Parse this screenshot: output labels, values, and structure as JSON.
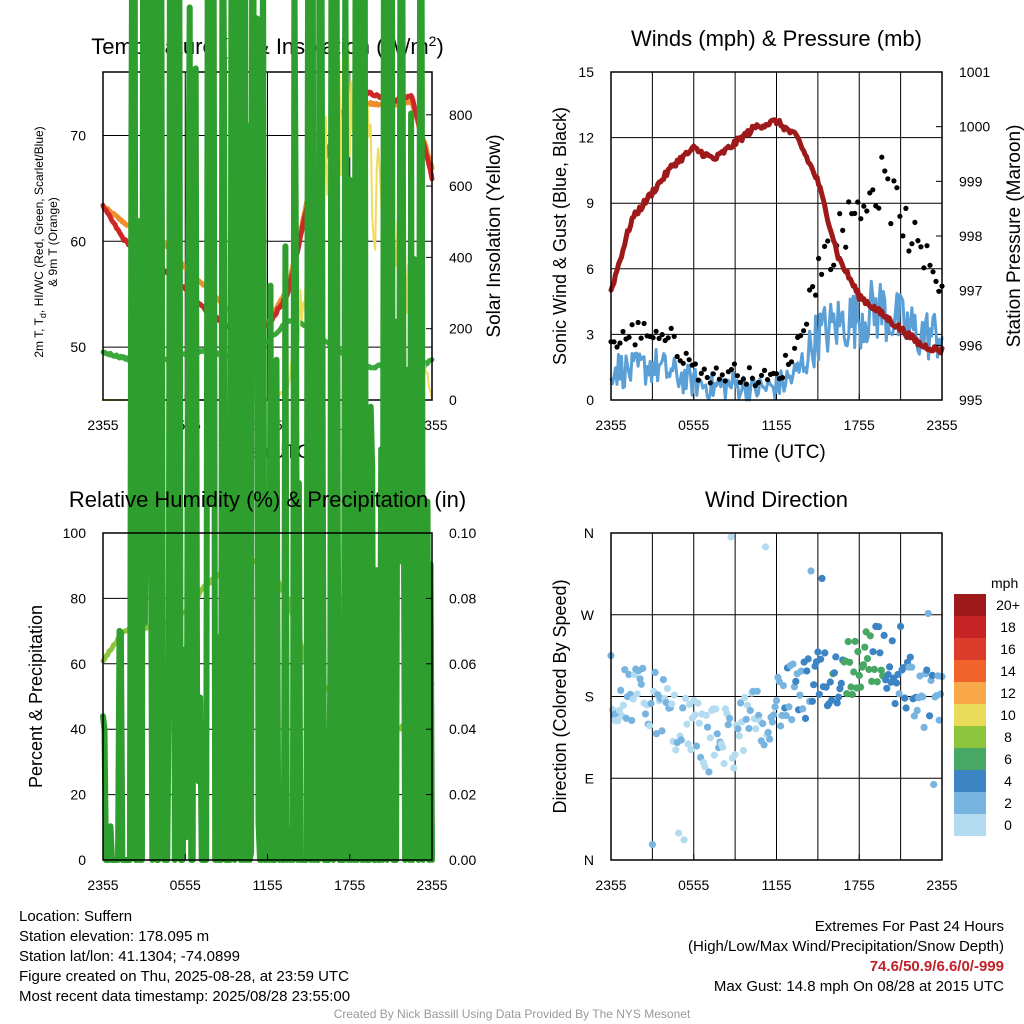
{
  "chart_data": [
    {
      "type": "line",
      "title": "Temperature (F) & Insolation (W/m²)",
      "title_main": "Temperature (F) & Insolation (W/m",
      "title_sup": "2",
      "title_end": ")",
      "xlabel": "Time (UTC)",
      "ylabel_line1": "2m T, T",
      "ylabel_sub": "d",
      "ylabel_rest": ", HI/WC (Red, Green, Scarlet/Blue)",
      "ylabel_line2": "& 9m T (Orange)",
      "y2label": "Solar Insolation (Yellow)",
      "x_ticks": [
        "2355",
        "0555",
        "1155",
        "1755",
        "2355"
      ],
      "ylim": [
        45,
        76
      ],
      "y_ticks": [
        "50",
        "60",
        "70"
      ],
      "y_tick_values": [
        50,
        60,
        70
      ],
      "y2lim": [
        0,
        920
      ],
      "y2_ticks": [
        "0",
        "200",
        "400",
        "600",
        "800"
      ],
      "y2_tick_values": [
        0,
        200,
        400,
        600,
        800
      ],
      "x_hours": [
        0,
        1.5,
        3,
        4.5,
        6,
        7.5,
        9,
        10.5,
        12,
        13.5,
        15,
        16.5,
        18,
        19.5,
        21,
        22.5,
        24
      ],
      "series": [
        {
          "color": "#f08c2a",
          "width": 5,
          "values": [
            63.3,
            61.8,
            60.5,
            59.8,
            57.5,
            55.7,
            53.7,
            51.8,
            52.2,
            55.5,
            64.5,
            68.5,
            72.5,
            73,
            72.8,
            73.2,
            67
          ]
        },
        {
          "color": "#cc2828",
          "width": 5,
          "values": [
            63.3,
            60.2,
            58.5,
            57.3,
            55.5,
            53.5,
            52,
            51.2,
            52,
            55,
            64,
            68.8,
            73.8,
            74,
            73.2,
            73.8,
            66
          ]
        },
        {
          "color": "#3ca83c",
          "width": 5,
          "values": [
            49.5,
            49,
            48.2,
            48.8,
            49.4,
            49.6,
            49.2,
            49.5,
            50.5,
            52.5,
            52,
            50.2,
            49,
            48,
            48.5,
            47.5,
            48.8
          ]
        },
        {
          "color": "#f0dc5a",
          "width": 2,
          "axis": "y2",
          "values": [
            0,
            0,
            0,
            0,
            0,
            0,
            0,
            0,
            0,
            30,
            420,
            640,
            860,
            600,
            430,
            300,
            0
          ]
        }
      ]
    },
    {
      "type": "line",
      "title": "Winds (mph) & Pressure (mb)",
      "xlabel": "Time (UTC)",
      "ylabel": "Sonic Wind & Gust (Blue, Black)",
      "y2label": "Station Pressure (Maroon)",
      "x_ticks": [
        "2355",
        "0555",
        "1155",
        "1755",
        "2355"
      ],
      "ylim": [
        0,
        15
      ],
      "y_ticks": [
        "0",
        "3",
        "6",
        "9",
        "12",
        "15"
      ],
      "y_tick_values": [
        0,
        3,
        6,
        9,
        12,
        15
      ],
      "y2lim": [
        995,
        1001
      ],
      "y2_ticks": [
        "995",
        "996",
        "997",
        "998",
        "999",
        "1000",
        "1001"
      ],
      "y2_tick_values": [
        995,
        996,
        997,
        998,
        999,
        1000,
        1001
      ],
      "x_hours": [
        0,
        1.5,
        3,
        4.5,
        6,
        7.5,
        9,
        10.5,
        12,
        13.5,
        15,
        16.5,
        18,
        19.5,
        21,
        22.5,
        24
      ],
      "series": [
        {
          "color": "#5a9fd6",
          "width": 3,
          "values": [
            1.5,
            1.3,
            1.6,
            1.2,
            0.8,
            0.6,
            0.7,
            0.5,
            0.6,
            1.2,
            3,
            3.5,
            3.8,
            4.2,
            3.5,
            3.0,
            3.0
          ]
        },
        {
          "color": "#000000",
          "width": 0,
          "points": true,
          "values": [
            2.5,
            3,
            3.2,
            2.7,
            1.4,
            1.1,
            1.3,
            1.0,
            1.0,
            2.5,
            6,
            7.5,
            9,
            10,
            8.5,
            6.5,
            5.5
          ]
        },
        {
          "color": "#9e1a1a",
          "width": 5,
          "axis": "y2",
          "values": [
            997.0,
            998.3,
            998.8,
            999.3,
            999.6,
            999.4,
            999.7,
            1000.0,
            1000.1,
            999.8,
            999.0,
            997.6,
            996.9,
            996.6,
            996.3,
            996.0,
            995.9
          ]
        }
      ]
    },
    {
      "type": "line",
      "title": "Relative Humidity (%) & Precipitation (in)",
      "ylabel": "Percent & Precipitation",
      "x_ticks": [
        "2355",
        "0555",
        "1155",
        "1755",
        "2355"
      ],
      "ylim": [
        0,
        100
      ],
      "y_ticks": [
        "0",
        "20",
        "40",
        "60",
        "80",
        "100"
      ],
      "y_tick_values": [
        0,
        20,
        40,
        60,
        80,
        100
      ],
      "y2lim": [
        0,
        0.1
      ],
      "y2_ticks": [
        "0.00",
        "0.02",
        "0.04",
        "0.06",
        "0.08",
        "0.10"
      ],
      "y2_tick_values": [
        0,
        0.02,
        0.04,
        0.06,
        0.08,
        0.1
      ],
      "x_hours": [
        0,
        1.5,
        3,
        4.5,
        6,
        7.5,
        9,
        10.5,
        12,
        13.5,
        15,
        16.5,
        18,
        19.5,
        21,
        22.5,
        24
      ],
      "series": [
        {
          "color": "#8cc43c",
          "width": 5,
          "values": [
            61,
            70,
            71,
            72,
            76,
            84,
            89,
            92,
            90,
            80,
            57,
            52,
            46,
            42,
            39,
            42,
            54
          ]
        },
        {
          "color": "#2e9e2e",
          "width": 6,
          "axis": "y2",
          "values": [
            0,
            0,
            0,
            0,
            0,
            0,
            0,
            0,
            0,
            0,
            0,
            0,
            0,
            0,
            0,
            0,
            0
          ]
        }
      ]
    },
    {
      "type": "scatter",
      "title": "Wind Direction",
      "ylabel": "Direction (Colored By Speed)",
      "x_ticks": [
        "2355",
        "0555",
        "1155",
        "1755",
        "2355"
      ],
      "y_ticks": [
        "N",
        "E",
        "S",
        "W",
        "N"
      ],
      "y_tick_values": [
        0,
        90,
        180,
        270,
        360
      ],
      "ylim": [
        0,
        360
      ],
      "legend_title": "mph",
      "legend_labels": [
        "20+",
        "18",
        "16",
        "14",
        "12",
        "10",
        "8",
        "6",
        "4",
        "2",
        "0"
      ],
      "legend_colors": [
        "#9e1a1a",
        "#c42424",
        "#dc3c2c",
        "#f0642c",
        "#f8a848",
        "#e8dc5a",
        "#8cc43c",
        "#46a864",
        "#3c84c4",
        "#78b4e0",
        "#b4dcf0"
      ],
      "x_hours": [
        0,
        1,
        2,
        3,
        4,
        5,
        6,
        7,
        8,
        9,
        10,
        11,
        12,
        13,
        14,
        15,
        16,
        17,
        18,
        19,
        20,
        21,
        22,
        23,
        24
      ],
      "directions": [
        170,
        190,
        175,
        180,
        160,
        140,
        150,
        130,
        140,
        135,
        150,
        160,
        175,
        180,
        185,
        195,
        200,
        210,
        220,
        230,
        215,
        200,
        190,
        175,
        170
      ],
      "speeds": [
        1,
        1.5,
        1,
        1.5,
        1,
        0.5,
        0.6,
        0.5,
        0.5,
        0.6,
        1,
        1.5,
        2,
        2.5,
        3,
        3.5,
        4,
        5,
        6,
        5,
        4,
        3.5,
        3,
        2.5,
        2
      ]
    }
  ],
  "info": {
    "location": "Location: Suffern",
    "elevation": "Station elevation: 178.095 m",
    "latlon": "Station lat/lon: 41.1304; -74.0899",
    "created": "Figure created on Thu, 2025-08-28, at 23:59 UTC",
    "recent": "Most recent data timestamp: 2025/08/28 23:55:00"
  },
  "extremes": {
    "title": "Extremes For Past 24 Hours",
    "subtitle": "(High/Low/Max Wind/Precipitation/Snow Depth)",
    "values": "74.6/50.9/6.6/0/-999",
    "max_gust": "Max Gust: 14.8 mph On 08/28 at 2015 UTC"
  },
  "credit": "Created By Nick Bassill Using Data Provided By The NYS Mesonet"
}
